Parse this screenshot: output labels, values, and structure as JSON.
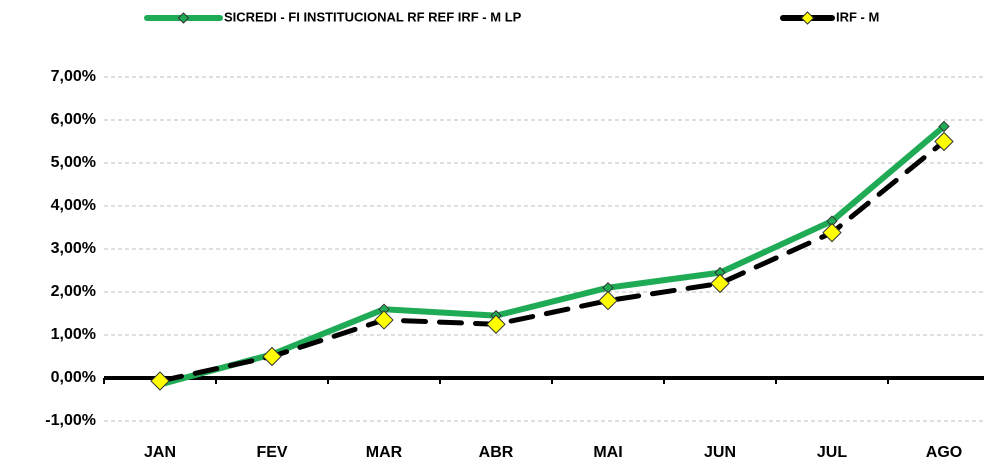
{
  "chart_data": {
    "type": "line",
    "categories": [
      "JAN",
      "FEV",
      "MAR",
      "ABR",
      "MAI",
      "JUN",
      "JUL",
      "AGO"
    ],
    "series": [
      {
        "name": "SICREDI - FI INSTITUCIONAL RF REF IRF - M LP",
        "color": "#1fab55",
        "values": [
          -0.15,
          0.55,
          1.6,
          1.45,
          2.1,
          2.45,
          3.65,
          5.85
        ]
      },
      {
        "name": "IRF - M",
        "color": "#000000",
        "values": [
          -0.07,
          0.5,
          1.35,
          1.25,
          1.8,
          2.2,
          3.38,
          5.5
        ]
      }
    ],
    "ylim": [
      -1,
      7
    ],
    "yticks": [
      {
        "value": -1,
        "label": "-1,00%"
      },
      {
        "value": 0,
        "label": "0,00%"
      },
      {
        "value": 1,
        "label": "1,00%"
      },
      {
        "value": 2,
        "label": "2,00%"
      },
      {
        "value": 3,
        "label": "3,00%"
      },
      {
        "value": 4,
        "label": "4,00%"
      },
      {
        "value": 5,
        "label": "5,00%"
      },
      {
        "value": 6,
        "label": "6,00%"
      },
      {
        "value": 7,
        "label": "7,00%"
      }
    ],
    "grid": true
  }
}
